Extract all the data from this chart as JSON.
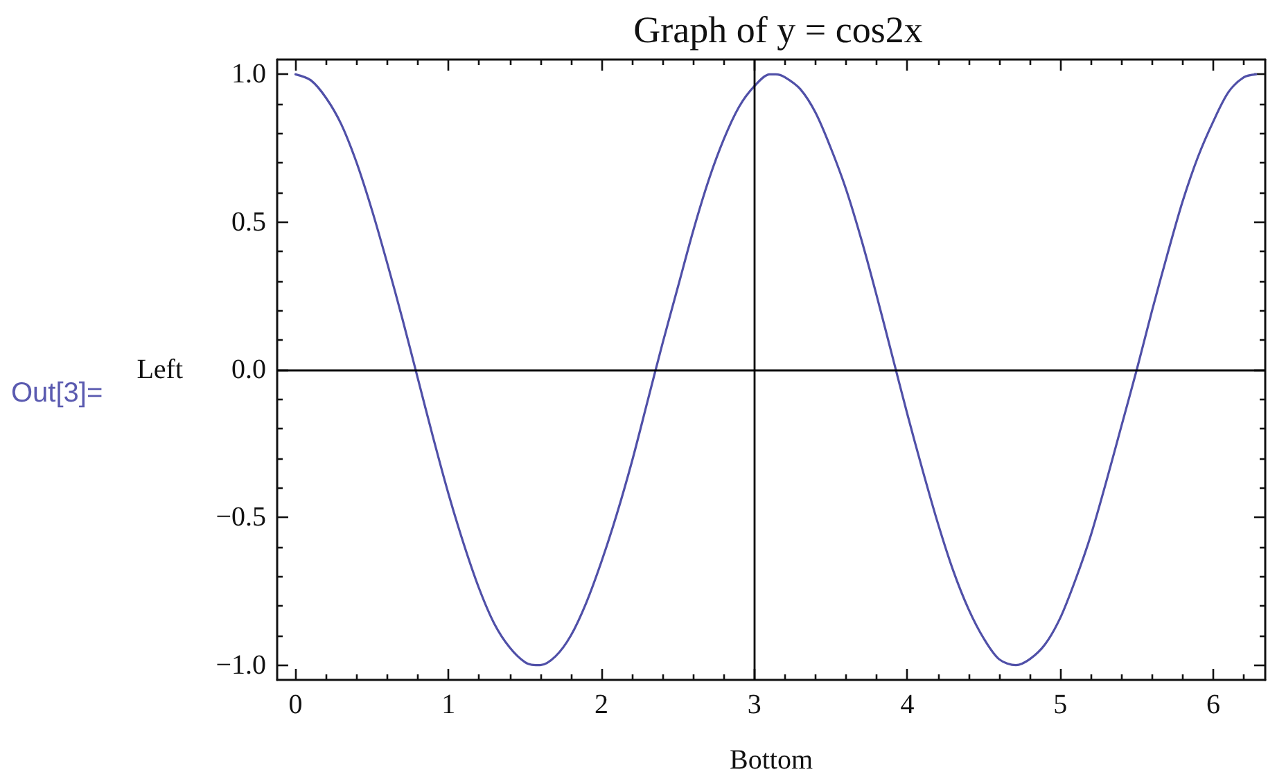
{
  "chart_data": {
    "type": "line",
    "title": "Graph of y = cos2x",
    "xlabel": "Bottom",
    "ylabel": "Left",
    "annotations": [
      "Out[3]="
    ],
    "x": [
      0,
      0.1,
      0.2,
      0.3,
      0.4,
      0.5,
      0.6,
      0.7,
      0.8,
      0.9,
      1.0,
      1.1,
      1.2,
      1.3,
      1.4,
      1.5,
      1.57,
      1.6,
      1.7,
      1.8,
      1.9,
      2.0,
      2.1,
      2.2,
      2.3,
      2.4,
      2.5,
      2.6,
      2.7,
      2.8,
      2.9,
      3.0,
      3.1,
      3.14,
      3.2,
      3.3,
      3.4,
      3.5,
      3.6,
      3.7,
      3.8,
      3.9,
      4.0,
      4.1,
      4.2,
      4.3,
      4.4,
      4.5,
      4.6,
      4.71,
      4.8,
      4.9,
      5.0,
      5.1,
      5.2,
      5.3,
      5.4,
      5.5,
      5.6,
      5.7,
      5.8,
      5.9,
      6.0,
      6.1,
      6.2,
      6.28
    ],
    "values": [
      1,
      0.98,
      0.92,
      0.83,
      0.7,
      0.54,
      0.36,
      0.17,
      -0.03,
      -0.23,
      -0.42,
      -0.59,
      -0.74,
      -0.86,
      -0.94,
      -0.99,
      -1,
      -1.0,
      -0.97,
      -0.9,
      -0.79,
      -0.65,
      -0.49,
      -0.31,
      -0.11,
      0.09,
      0.28,
      0.47,
      0.64,
      0.78,
      0.89,
      0.96,
      1.0,
      1,
      0.99,
      0.95,
      0.87,
      0.75,
      0.61,
      0.44,
      0.25,
      0.05,
      -0.15,
      -0.34,
      -0.52,
      -0.68,
      -0.81,
      -0.91,
      -0.98,
      -1,
      -0.98,
      -0.93,
      -0.84,
      -0.71,
      -0.56,
      -0.38,
      -0.19,
      0.0,
      0.2,
      0.39,
      0.57,
      0.72,
      0.84,
      0.94,
      0.99,
      1
    ],
    "color": "#5050a8",
    "marker": "none",
    "line_style": "solid",
    "xlim": [
      -0.12,
      6.34
    ],
    "xticks": [
      0,
      {
        "value": 0.2,
        "label": null
      },
      {
        "value": 0.4,
        "label": null
      },
      {
        "value": 0.6,
        "label": null
      },
      {
        "value": 0.8,
        "label": null
      },
      1,
      {
        "value": 1.2,
        "label": null
      },
      {
        "value": 1.4,
        "label": null
      },
      {
        "value": 1.6,
        "label": null
      },
      {
        "value": 1.8,
        "label": null
      },
      2,
      {
        "value": 2.2,
        "label": null
      },
      {
        "value": 2.4,
        "label": null
      },
      {
        "value": 2.6,
        "label": null
      },
      {
        "value": 2.8,
        "label": null
      },
      3,
      {
        "value": 3.2,
        "label": null
      },
      {
        "value": 3.4,
        "label": null
      },
      {
        "value": 3.6,
        "label": null
      },
      {
        "value": 3.8,
        "label": null
      },
      4,
      {
        "value": 4.2,
        "label": null
      },
      {
        "value": 4.4,
        "label": null
      },
      {
        "value": 4.6,
        "label": null
      },
      {
        "value": 4.8,
        "label": null
      },
      5,
      {
        "value": 5.2,
        "label": null
      },
      {
        "value": 5.4,
        "label": null
      },
      {
        "value": 5.6,
        "label": null
      },
      {
        "value": 5.8,
        "label": null
      },
      6,
      {
        "value": 6.2,
        "label": null
      }
    ],
    "ylim": [
      -1.05,
      1.05
    ],
    "yticks": [
      {
        "value": -1,
        "label": "−1.0"
      },
      {
        "value": -0.9,
        "label": null
      },
      {
        "value": -0.8,
        "label": null
      },
      {
        "value": -0.7,
        "label": null
      },
      {
        "value": -0.6,
        "label": null
      },
      {
        "value": -0.5,
        "label": "−0.5"
      },
      {
        "value": -0.4,
        "label": null
      },
      {
        "value": -0.3,
        "label": null
      },
      {
        "value": -0.2,
        "label": null
      },
      {
        "value": -0.1,
        "label": null
      },
      {
        "value": 0,
        "label": "0.0"
      },
      {
        "value": 0.1,
        "label": null
      },
      {
        "value": 0.2,
        "label": null
      },
      {
        "value": 0.3,
        "label": null
      },
      {
        "value": 0.4,
        "label": null
      },
      {
        "value": 0.5,
        "label": "0.5"
      },
      {
        "value": 0.6,
        "label": null
      },
      {
        "value": 0.7,
        "label": null
      },
      {
        "value": 0.8,
        "label": null
      },
      {
        "value": 0.9,
        "label": null
      },
      {
        "value": 1,
        "label": "1.0"
      }
    ],
    "ref_lines": [
      {
        "axis": "x",
        "value": 3,
        "color": "#000000"
      },
      {
        "axis": "y",
        "value": 0,
        "color": "#000000"
      }
    ]
  }
}
